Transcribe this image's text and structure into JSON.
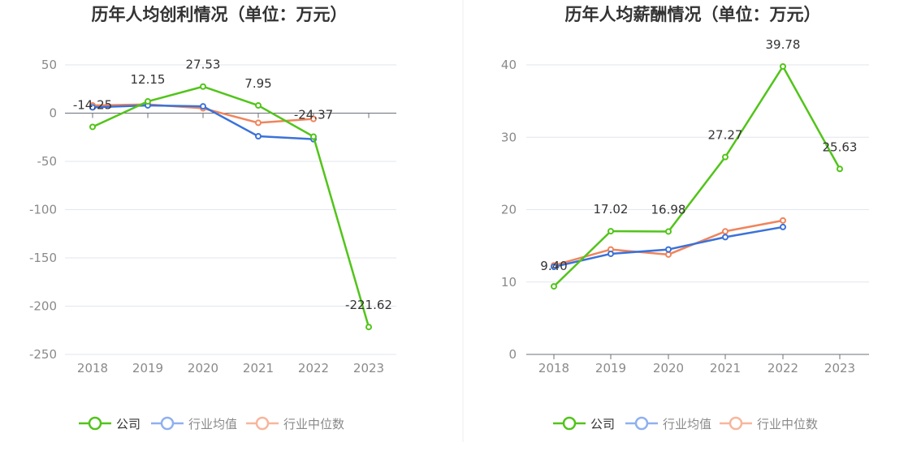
{
  "charts": [
    {
      "chart_data": {
        "type": "line",
        "title": "历年人均创利情况（单位：万元）",
        "categories": [
          "2018",
          "2019",
          "2020",
          "2021",
          "2022",
          "2023"
        ],
        "ylim": [
          -250,
          50
        ],
        "yticks": [
          50,
          0,
          -50,
          -100,
          -150,
          -200,
          -250
        ],
        "grid": true,
        "legend": "bottom",
        "series": [
          {
            "name": "公司",
            "color": "#52c41a",
            "values": [
              -14.25,
              12.15,
              27.53,
              7.95,
              -24.37,
              -221.62
            ],
            "labels": [
              "-14.25",
              "12.15",
              "27.53",
              "7.95",
              "-24.37",
              "-221.62"
            ]
          },
          {
            "name": "行业均值",
            "color": "#3b72d9",
            "values": [
              6,
              8,
              7,
              -24,
              -27,
              null
            ]
          },
          {
            "name": "行业中位数",
            "color": "#f0845c",
            "values": [
              8,
              9,
              5,
              -10,
              -6,
              null
            ]
          }
        ]
      }
    },
    {
      "chart_data": {
        "type": "line",
        "title": "历年人均薪酬情况（单位：万元）",
        "categories": [
          "2018",
          "2019",
          "2020",
          "2021",
          "2022",
          "2023"
        ],
        "ylim": [
          0,
          40
        ],
        "yticks": [
          40,
          30,
          20,
          10,
          0
        ],
        "grid": true,
        "legend": "bottom",
        "series": [
          {
            "name": "公司",
            "color": "#52c41a",
            "values": [
              9.4,
              17.02,
              16.98,
              27.27,
              39.78,
              25.63
            ],
            "labels": [
              "9.40",
              "17.02",
              "16.98",
              "27.27",
              "39.78",
              "25.63"
            ]
          },
          {
            "name": "行业均值",
            "color": "#3b72d9",
            "values": [
              12.1,
              13.9,
              14.5,
              16.2,
              17.6,
              null
            ]
          },
          {
            "name": "行业中位数",
            "color": "#f0845c",
            "values": [
              12.3,
              14.5,
              13.8,
              17.0,
              18.5,
              null
            ]
          }
        ]
      }
    }
  ],
  "legend_items": [
    "公司",
    "行业均值",
    "行业中位数"
  ]
}
